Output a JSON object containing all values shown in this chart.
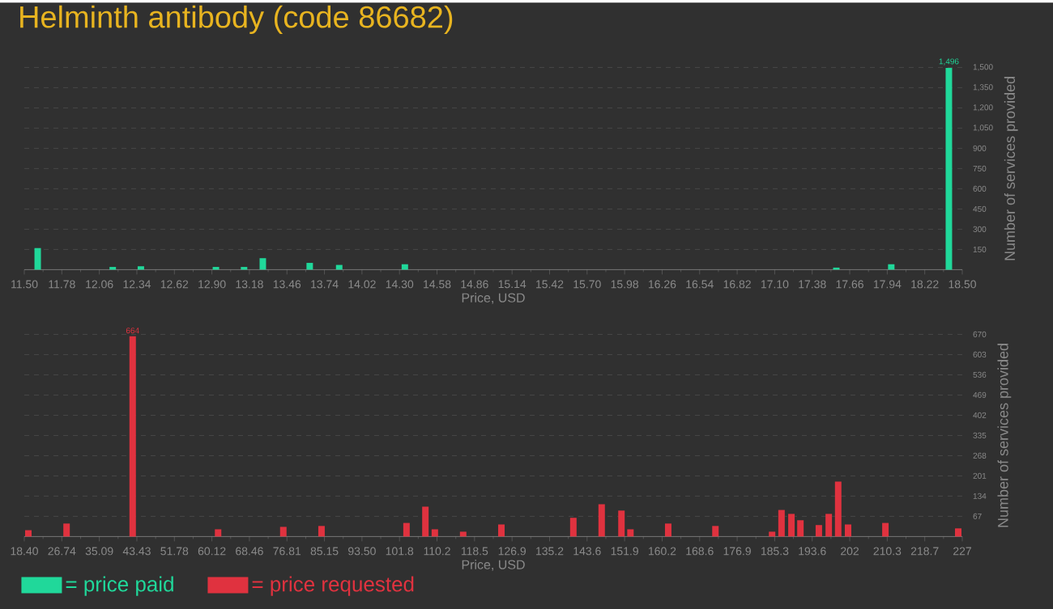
{
  "chart_data": [
    {
      "type": "bar",
      "title": "Helminth antibody (code 86682)",
      "xlabel": "Price, USD",
      "ylabel": "Number of services provided",
      "series": [
        {
          "name": "= price paid",
          "color": "#20d89a",
          "x": [
            11.6,
            12.16,
            12.37,
            12.93,
            13.14,
            13.28,
            13.63,
            13.85,
            14.34,
            17.56,
            17.97,
            18.4
          ],
          "values": [
            160,
            20,
            25,
            20,
            20,
            85,
            50,
            35,
            40,
            15,
            40,
            1496
          ],
          "value_labels": [
            null,
            null,
            null,
            null,
            null,
            null,
            null,
            null,
            null,
            null,
            null,
            "1,496"
          ]
        }
      ],
      "xlim": [
        11.5,
        18.5
      ],
      "ylim": [
        0,
        1500
      ],
      "xticks": [
        {
          "value": 11.5,
          "label": "11.50"
        },
        {
          "value": 11.78,
          "label": "11.78"
        },
        {
          "value": 12.06,
          "label": "12.06"
        },
        {
          "value": 12.34,
          "label": "12.34"
        },
        {
          "value": 12.62,
          "label": "12.62"
        },
        {
          "value": 12.9,
          "label": "12.90"
        },
        {
          "value": 13.18,
          "label": "13.18"
        },
        {
          "value": 13.46,
          "label": "13.46"
        },
        {
          "value": 13.74,
          "label": "13.74"
        },
        {
          "value": 14.02,
          "label": "14.02"
        },
        {
          "value": 14.3,
          "label": "14.30"
        },
        {
          "value": 14.58,
          "label": "14.58"
        },
        {
          "value": 14.86,
          "label": "14.86"
        },
        {
          "value": 15.14,
          "label": "15.14"
        },
        {
          "value": 15.42,
          "label": "15.42"
        },
        {
          "value": 15.7,
          "label": "15.70"
        },
        {
          "value": 15.98,
          "label": "15.98"
        },
        {
          "value": 16.26,
          "label": "16.26"
        },
        {
          "value": 16.54,
          "label": "16.54"
        },
        {
          "value": 16.82,
          "label": "16.82"
        },
        {
          "value": 17.1,
          "label": "17.10"
        },
        {
          "value": 17.38,
          "label": "17.38"
        },
        {
          "value": 17.66,
          "label": "17.66"
        },
        {
          "value": 17.94,
          "label": "17.94"
        },
        {
          "value": 18.22,
          "label": "18.22"
        },
        {
          "value": 18.5,
          "label": "18.50"
        }
      ],
      "yticks": [
        150,
        300,
        450,
        600,
        750,
        900,
        {
          "value": 1050,
          "label": "1,050"
        },
        {
          "value": 1200,
          "label": "1,200"
        },
        {
          "value": 1350,
          "label": "1,350"
        },
        {
          "value": 1500,
          "label": "1,500"
        }
      ],
      "grid": "y",
      "legend": "bottom left"
    },
    {
      "type": "bar",
      "xlabel": "Price, USD",
      "ylabel": "Number of services provided",
      "series": [
        {
          "name": "= price requested",
          "color": "#e0323f",
          "x": [
            19.3,
            27.8,
            42.5,
            61.5,
            76.0,
            84.5,
            103.4,
            107.6,
            109.7,
            116.0,
            124.5,
            140.5,
            146.8,
            151.2,
            153.2,
            161.6,
            172.1,
            184.7,
            186.8,
            189.0,
            191.0,
            195.1,
            197.3,
            199.4,
            201.6,
            209.9,
            226.1
          ],
          "values": [
            21,
            43,
            664,
            24,
            32,
            35,
            45,
            99,
            24,
            16,
            40,
            62,
            107,
            86,
            24,
            43,
            35,
            16,
            88,
            75,
            54,
            38,
            75,
            182,
            40,
            45,
            27
          ],
          "value_labels": [
            null,
            null,
            "664",
            null,
            null,
            null,
            null,
            null,
            null,
            null,
            null,
            null,
            null,
            null,
            null,
            null,
            null,
            null,
            null,
            null,
            null,
            null,
            null,
            null,
            null,
            null,
            null
          ]
        }
      ],
      "xlim": [
        18.4,
        227
      ],
      "ylim": [
        0,
        670
      ],
      "xticks": [
        {
          "value": 18.4,
          "label": "18.40"
        },
        {
          "value": 26.744,
          "label": "26.74"
        },
        {
          "value": 35.088,
          "label": "35.09"
        },
        {
          "value": 43.432,
          "label": "43.43"
        },
        {
          "value": 51.776,
          "label": "51.78"
        },
        {
          "value": 60.12,
          "label": "60.12"
        },
        {
          "value": 68.464,
          "label": "68.46"
        },
        {
          "value": 76.808,
          "label": "76.81"
        },
        {
          "value": 85.152,
          "label": "85.15"
        },
        {
          "value": 93.496,
          "label": "93.50"
        },
        {
          "value": 101.84,
          "label": "101.8"
        },
        {
          "value": 110.184,
          "label": "110.2"
        },
        {
          "value": 118.528,
          "label": "118.5"
        },
        {
          "value": 126.872,
          "label": "126.9"
        },
        {
          "value": 135.216,
          "label": "135.2"
        },
        {
          "value": 143.56,
          "label": "143.6"
        },
        {
          "value": 151.904,
          "label": "151.9"
        },
        {
          "value": 160.248,
          "label": "160.2"
        },
        {
          "value": 168.592,
          "label": "168.6"
        },
        {
          "value": 176.936,
          "label": "176.9"
        },
        {
          "value": 185.28,
          "label": "185.3"
        },
        {
          "value": 193.624,
          "label": "193.6"
        },
        {
          "value": 201.968,
          "label": "202"
        },
        {
          "value": 210.312,
          "label": "210.3"
        },
        {
          "value": 218.656,
          "label": "218.7"
        },
        227
      ],
      "yticks": [
        67,
        134,
        201,
        268,
        335,
        402,
        469,
        536,
        603,
        670
      ],
      "grid": "y",
      "legend": "bottom"
    }
  ]
}
